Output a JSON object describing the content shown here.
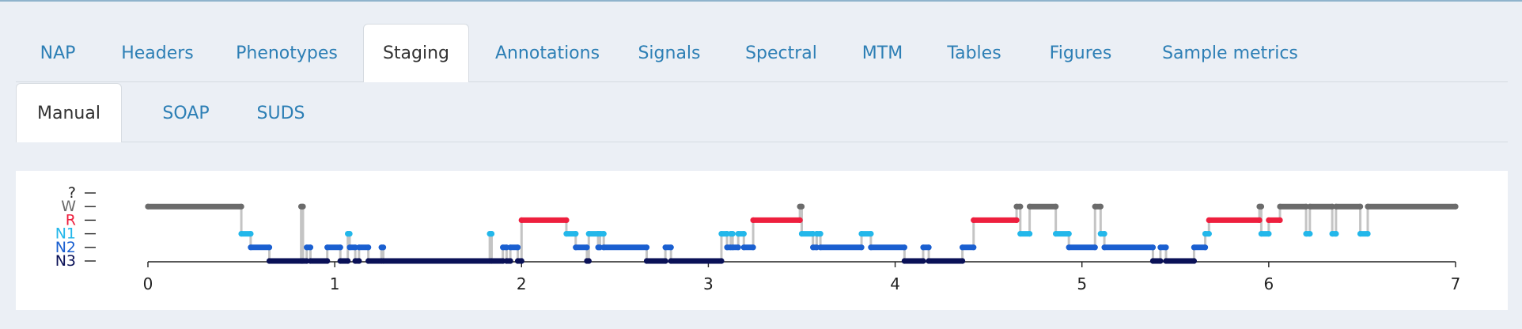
{
  "main_tabs": [
    {
      "label": "NAP",
      "active": false
    },
    {
      "label": "Headers",
      "active": false
    },
    {
      "label": "Phenotypes",
      "active": false
    },
    {
      "label": "Staging",
      "active": true
    },
    {
      "label": "Annotations",
      "active": false
    },
    {
      "label": "Signals",
      "active": false
    },
    {
      "label": "Spectral",
      "active": false
    },
    {
      "label": "MTM",
      "active": false
    },
    {
      "label": "Tables",
      "active": false
    },
    {
      "label": "Figures",
      "active": false
    },
    {
      "label": "Sample metrics",
      "active": false
    }
  ],
  "sub_tabs": [
    {
      "label": "Manual",
      "active": true
    },
    {
      "label": "SOAP",
      "active": false
    },
    {
      "label": "SUDS",
      "active": false
    }
  ],
  "chart_data": {
    "type": "line",
    "title": "",
    "xlabel": "",
    "ylabel": "",
    "xlim": [
      0,
      7
    ],
    "x_ticks": [
      "0",
      "1",
      "2",
      "3",
      "4",
      "5",
      "6",
      "7"
    ],
    "y_categories": [
      "N3",
      "N2",
      "N1",
      "R",
      "W",
      "?"
    ],
    "stage_colors": {
      "?": "#222222",
      "W": "#6b6b6b",
      "R": "#ee1f3e",
      "N1": "#23b7ea",
      "N2": "#1a5fd0",
      "N3": "#0a1157"
    },
    "connector_color": "#c4c4c4",
    "grid": false,
    "segments": [
      {
        "stage": "W",
        "start": 0.0,
        "end": 0.5
      },
      {
        "stage": "N1",
        "start": 0.5,
        "end": 0.55
      },
      {
        "stage": "N2",
        "start": 0.55,
        "end": 0.65
      },
      {
        "stage": "N3",
        "start": 0.65,
        "end": 0.82
      },
      {
        "stage": "W",
        "start": 0.82,
        "end": 0.83
      },
      {
        "stage": "N3",
        "start": 0.83,
        "end": 0.85
      },
      {
        "stage": "N2",
        "start": 0.85,
        "end": 0.87
      },
      {
        "stage": "N3",
        "start": 0.87,
        "end": 0.96
      },
      {
        "stage": "N2",
        "start": 0.96,
        "end": 1.03
      },
      {
        "stage": "N3",
        "start": 1.03,
        "end": 1.07
      },
      {
        "stage": "N1",
        "start": 1.07,
        "end": 1.08
      },
      {
        "stage": "N2",
        "start": 1.08,
        "end": 1.11
      },
      {
        "stage": "N3",
        "start": 1.11,
        "end": 1.13
      },
      {
        "stage": "N2",
        "start": 1.13,
        "end": 1.18
      },
      {
        "stage": "N3",
        "start": 1.18,
        "end": 1.25
      },
      {
        "stage": "N2",
        "start": 1.25,
        "end": 1.26
      },
      {
        "stage": "N3",
        "start": 1.26,
        "end": 1.83
      },
      {
        "stage": "N1",
        "start": 1.83,
        "end": 1.84
      },
      {
        "stage": "N3",
        "start": 1.84,
        "end": 1.9
      },
      {
        "stage": "N2",
        "start": 1.9,
        "end": 1.92
      },
      {
        "stage": "N3",
        "start": 1.92,
        "end": 1.94
      },
      {
        "stage": "N2",
        "start": 1.94,
        "end": 1.98
      },
      {
        "stage": "N3",
        "start": 1.98,
        "end": 2.0
      },
      {
        "stage": "R",
        "start": 2.0,
        "end": 2.24
      },
      {
        "stage": "N1",
        "start": 2.24,
        "end": 2.29
      },
      {
        "stage": "N2",
        "start": 2.29,
        "end": 2.35
      },
      {
        "stage": "N3",
        "start": 2.35,
        "end": 2.36
      },
      {
        "stage": "N1",
        "start": 2.36,
        "end": 2.41
      },
      {
        "stage": "N2",
        "start": 2.41,
        "end": 2.42
      },
      {
        "stage": "N1",
        "start": 2.42,
        "end": 2.44
      },
      {
        "stage": "N2",
        "start": 2.44,
        "end": 2.67
      },
      {
        "stage": "N3",
        "start": 2.67,
        "end": 2.77
      },
      {
        "stage": "N2",
        "start": 2.77,
        "end": 2.8
      },
      {
        "stage": "N3",
        "start": 2.8,
        "end": 3.07
      },
      {
        "stage": "N1",
        "start": 3.07,
        "end": 3.1
      },
      {
        "stage": "N2",
        "start": 3.1,
        "end": 3.12
      },
      {
        "stage": "N1",
        "start": 3.12,
        "end": 3.13
      },
      {
        "stage": "N2",
        "start": 3.13,
        "end": 3.16
      },
      {
        "stage": "N1",
        "start": 3.16,
        "end": 3.19
      },
      {
        "stage": "N2",
        "start": 3.19,
        "end": 3.24
      },
      {
        "stage": "R",
        "start": 3.24,
        "end": 3.49
      },
      {
        "stage": "W",
        "start": 3.49,
        "end": 3.5
      },
      {
        "stage": "N1",
        "start": 3.5,
        "end": 3.56
      },
      {
        "stage": "N2",
        "start": 3.56,
        "end": 3.58
      },
      {
        "stage": "N1",
        "start": 3.58,
        "end": 3.6
      },
      {
        "stage": "N2",
        "start": 3.6,
        "end": 3.82
      },
      {
        "stage": "N1",
        "start": 3.82,
        "end": 3.87
      },
      {
        "stage": "N2",
        "start": 3.87,
        "end": 4.05
      },
      {
        "stage": "N3",
        "start": 4.05,
        "end": 4.15
      },
      {
        "stage": "N2",
        "start": 4.15,
        "end": 4.18
      },
      {
        "stage": "N3",
        "start": 4.18,
        "end": 4.36
      },
      {
        "stage": "N2",
        "start": 4.36,
        "end": 4.42
      },
      {
        "stage": "R",
        "start": 4.42,
        "end": 4.65
      },
      {
        "stage": "W",
        "start": 4.65,
        "end": 4.67
      },
      {
        "stage": "N1",
        "start": 4.67,
        "end": 4.72
      },
      {
        "stage": "W",
        "start": 4.72,
        "end": 4.86
      },
      {
        "stage": "N1",
        "start": 4.86,
        "end": 4.93
      },
      {
        "stage": "N2",
        "start": 4.93,
        "end": 5.07
      },
      {
        "stage": "W",
        "start": 5.07,
        "end": 5.1
      },
      {
        "stage": "N1",
        "start": 5.1,
        "end": 5.12
      },
      {
        "stage": "N2",
        "start": 5.12,
        "end": 5.38
      },
      {
        "stage": "N3",
        "start": 5.38,
        "end": 5.42
      },
      {
        "stage": "N2",
        "start": 5.42,
        "end": 5.45
      },
      {
        "stage": "N3",
        "start": 5.45,
        "end": 5.6
      },
      {
        "stage": "N2",
        "start": 5.6,
        "end": 5.66
      },
      {
        "stage": "N1",
        "start": 5.66,
        "end": 5.68
      },
      {
        "stage": "R",
        "start": 5.68,
        "end": 5.95
      },
      {
        "stage": "W",
        "start": 5.95,
        "end": 5.96
      },
      {
        "stage": "N1",
        "start": 5.96,
        "end": 6.0
      },
      {
        "stage": "R",
        "start": 6.0,
        "end": 6.06
      },
      {
        "stage": "W",
        "start": 6.06,
        "end": 6.2
      },
      {
        "stage": "N1",
        "start": 6.2,
        "end": 6.22
      },
      {
        "stage": "W",
        "start": 6.22,
        "end": 6.34
      },
      {
        "stage": "N1",
        "start": 6.34,
        "end": 6.36
      },
      {
        "stage": "W",
        "start": 6.36,
        "end": 6.49
      },
      {
        "stage": "N1",
        "start": 6.49,
        "end": 6.53
      },
      {
        "stage": "W",
        "start": 6.53,
        "end": 7.0
      }
    ]
  }
}
